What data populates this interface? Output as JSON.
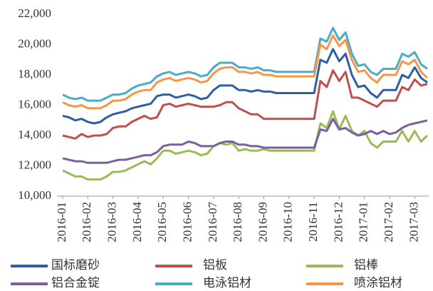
{
  "chart_data": {
    "type": "line",
    "categories": [
      "2016-01",
      null,
      null,
      null,
      "2016-02",
      null,
      null,
      null,
      "2016-03",
      null,
      null,
      null,
      "2016-04",
      null,
      null,
      null,
      "2016-05",
      null,
      null,
      null,
      "2016-06",
      null,
      null,
      null,
      "2016-07",
      null,
      null,
      null,
      "2016-08",
      null,
      null,
      null,
      "2016-09",
      null,
      null,
      null,
      "2016-10",
      null,
      null,
      null,
      "2016-11",
      null,
      null,
      null,
      "2016-12",
      null,
      null,
      null,
      "2017-01",
      null,
      null,
      null,
      "2017-02",
      null,
      null,
      null,
      "2017-03",
      null,
      null
    ],
    "ylim": [
      10000,
      22000
    ],
    "yticks": [
      {
        "value": 10000,
        "label": "10,000"
      },
      {
        "value": 12000,
        "label": "12,000"
      },
      {
        "value": 14000,
        "label": "14,000"
      },
      {
        "value": 16000,
        "label": "16,000"
      },
      {
        "value": 18000,
        "label": "18,000"
      },
      {
        "value": 20000,
        "label": "20,000"
      },
      {
        "value": 22000,
        "label": "22,000"
      }
    ],
    "grid": false,
    "series": [
      {
        "name": "国标磨砂",
        "color": "#2e5fa3",
        "values": [
          15300,
          15200,
          15000,
          15100,
          14900,
          14800,
          14900,
          15200,
          15400,
          15500,
          15600,
          15800,
          15900,
          16000,
          16100,
          16600,
          16700,
          16700,
          16500,
          16600,
          16700,
          16600,
          16400,
          16500,
          17000,
          17300,
          17300,
          17300,
          17000,
          17000,
          16900,
          17000,
          16900,
          16900,
          16800,
          16800,
          16800,
          16800,
          16800,
          16800,
          16800,
          19000,
          18800,
          19700,
          18900,
          19400,
          18000,
          17200,
          17300,
          16800,
          16500,
          17000,
          17000,
          17000,
          18000,
          17800,
          18500,
          17800,
          17500
        ]
      },
      {
        "name": "铝板",
        "color": "#c0504d",
        "values": [
          14000,
          13900,
          13800,
          14100,
          13900,
          14000,
          14000,
          14100,
          14500,
          14600,
          14600,
          14900,
          15100,
          15300,
          15100,
          15200,
          16000,
          16100,
          15900,
          16000,
          16100,
          16000,
          15900,
          15900,
          15900,
          16000,
          16200,
          16200,
          15800,
          15600,
          15400,
          15400,
          15100,
          15100,
          15100,
          15100,
          15100,
          15100,
          15100,
          15100,
          15100,
          17600,
          17200,
          18300,
          17600,
          18200,
          16500,
          16500,
          16300,
          16100,
          15900,
          16300,
          16300,
          16300,
          17200,
          17000,
          17700,
          17300,
          17400
        ]
      },
      {
        "name": "铝棒",
        "color": "#9bbb59",
        "values": [
          11700,
          11500,
          11300,
          11300,
          11100,
          11100,
          11100,
          11300,
          11600,
          11600,
          11700,
          11900,
          12100,
          12300,
          12100,
          12500,
          13000,
          13000,
          12800,
          12900,
          13000,
          12900,
          12700,
          12800,
          13300,
          13500,
          13400,
          13500,
          13000,
          13100,
          13000,
          13000,
          13100,
          13000,
          13000,
          13000,
          13000,
          13000,
          13000,
          13000,
          13000,
          14800,
          14500,
          15600,
          14400,
          15300,
          14300,
          14000,
          14300,
          13500,
          13200,
          13600,
          13600,
          13600,
          14300,
          13600,
          14300,
          13600,
          14000
        ]
      },
      {
        "name": "铝合金锭",
        "color": "#7d5fa0",
        "values": [
          12500,
          12400,
          12300,
          12300,
          12200,
          12200,
          12200,
          12200,
          12300,
          12400,
          12400,
          12500,
          12600,
          12700,
          12700,
          12900,
          13300,
          13400,
          13400,
          13400,
          13600,
          13500,
          13300,
          13300,
          13300,
          13500,
          13600,
          13600,
          13400,
          13400,
          13300,
          13300,
          13200,
          13200,
          13200,
          13200,
          13200,
          13200,
          13200,
          13200,
          13200,
          14400,
          14300,
          15100,
          14400,
          14500,
          14200,
          14000,
          14100,
          14300,
          14100,
          14300,
          14100,
          14200,
          14500,
          14700,
          14800,
          14900,
          15000
        ]
      },
      {
        "name": "电泳铝材",
        "color": "#4bacc6",
        "values": [
          16700,
          16500,
          16400,
          16500,
          16300,
          16300,
          16300,
          16500,
          16700,
          16700,
          16800,
          17100,
          17300,
          17400,
          17500,
          17900,
          18100,
          18200,
          18000,
          18100,
          18200,
          18100,
          17900,
          18000,
          18500,
          18800,
          18800,
          18800,
          18500,
          18500,
          18400,
          18500,
          18300,
          18300,
          18200,
          18200,
          18200,
          18200,
          18200,
          18200,
          18200,
          20400,
          20200,
          21100,
          20300,
          20800,
          19400,
          18600,
          18700,
          18200,
          18000,
          18400,
          18400,
          18400,
          19400,
          19200,
          19500,
          18700,
          18400
        ]
      },
      {
        "name": "喷涂铝材",
        "color": "#f79646",
        "values": [
          16200,
          16000,
          15900,
          16000,
          15800,
          15800,
          15800,
          16000,
          16300,
          16300,
          16400,
          16700,
          16900,
          17000,
          17000,
          17500,
          17700,
          17800,
          17600,
          17700,
          17800,
          17700,
          17500,
          17600,
          18100,
          18400,
          18500,
          18500,
          18200,
          18200,
          18100,
          18200,
          18000,
          18000,
          17900,
          17900,
          17900,
          17900,
          17900,
          17900,
          17900,
          20000,
          19700,
          20600,
          19900,
          20300,
          19000,
          18200,
          18300,
          17800,
          17500,
          18000,
          18000,
          18000,
          18900,
          18700,
          19000,
          18200,
          17800
        ]
      }
    ]
  }
}
